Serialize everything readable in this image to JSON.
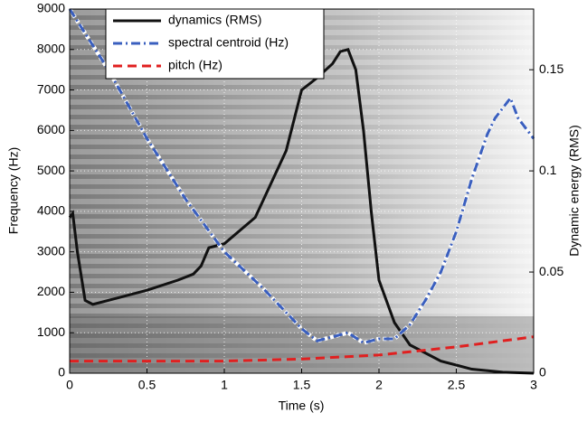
{
  "chart_data": {
    "type": "line",
    "xlabel": "Time (s)",
    "ylabel": "Frequency (Hz)",
    "y2label": "Dynamic energy (RMS)",
    "xlim": [
      0,
      3
    ],
    "xticks": [
      0,
      0.5,
      1,
      1.5,
      2,
      2.5,
      3
    ],
    "ylim": [
      0,
      9000
    ],
    "yticks": [
      0,
      1000,
      2000,
      3000,
      4000,
      5000,
      6000,
      7000,
      8000,
      9000
    ],
    "y2lim": [
      0,
      0.18
    ],
    "y2ticks": [
      0,
      0.05,
      0.1,
      0.15
    ],
    "grid": true,
    "legend": "top",
    "series": [
      {
        "name": "dynamics (RMS)",
        "color": "#111111",
        "linestyle": "solid",
        "axis": "y2",
        "x": [
          0,
          0.02,
          0.05,
          0.1,
          0.15,
          0.3,
          0.5,
          0.7,
          0.8,
          0.85,
          0.9,
          1.0,
          1.2,
          1.4,
          1.5,
          1.6,
          1.7,
          1.75,
          1.8,
          1.85,
          1.9,
          1.95,
          2.0,
          2.1,
          2.2,
          2.4,
          2.6,
          2.8,
          3.0
        ],
        "values": [
          0.077,
          0.079,
          0.06,
          0.036,
          0.034,
          0.037,
          0.041,
          0.046,
          0.049,
          0.053,
          0.062,
          0.064,
          0.077,
          0.11,
          0.14,
          0.146,
          0.153,
          0.159,
          0.16,
          0.15,
          0.12,
          0.08,
          0.046,
          0.025,
          0.014,
          0.006,
          0.002,
          0.0005,
          0
        ]
      },
      {
        "name": "spectral centroid (Hz)",
        "color": "#3a5fbf",
        "linestyle": "dashdot",
        "x": [
          0,
          0.25,
          0.5,
          0.75,
          1.0,
          1.25,
          1.5,
          1.6,
          1.7,
          1.8,
          1.9,
          2.0,
          2.1,
          2.2,
          2.3,
          2.4,
          2.5,
          2.6,
          2.7,
          2.75,
          2.85,
          2.9,
          3.0
        ],
        "values": [
          9000,
          7500,
          5800,
          4300,
          3000,
          2100,
          1100,
          800,
          900,
          1000,
          750,
          850,
          850,
          1200,
          1800,
          2500,
          3500,
          4800,
          5900,
          6300,
          6800,
          6300,
          5800
        ]
      },
      {
        "name": "pitch (Hz)",
        "color": "#e02020",
        "linestyle": "dashed",
        "x": [
          0,
          1,
          1.5,
          2,
          2.5,
          3
        ],
        "values": [
          300,
          300,
          350,
          450,
          650,
          900
        ]
      }
    ]
  }
}
